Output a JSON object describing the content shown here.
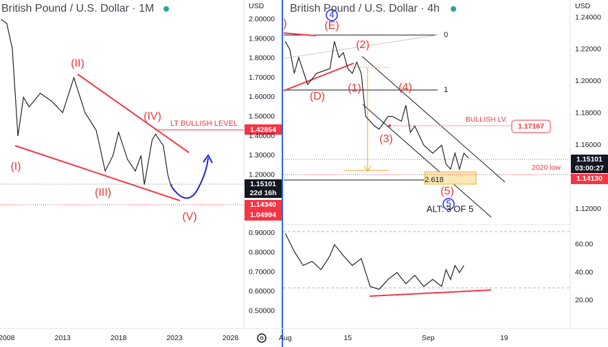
{
  "chart_data": [
    {
      "type": "line",
      "title": "British Pound / U.S. Dollar · 1M",
      "axis_unit": "USD",
      "color": "#222222",
      "x": [
        2007.5,
        2008,
        2008.5,
        2009,
        2009.5,
        2010,
        2011,
        2012,
        2013,
        2014,
        2015,
        2016,
        2016.8,
        2017.5,
        2018,
        2018.8,
        2019.5,
        2020,
        2020.3,
        2021,
        2021.3,
        2022,
        2022.4,
        2022.7,
        2022.8
      ],
      "values": [
        2.0,
        1.98,
        1.85,
        1.4,
        1.6,
        1.55,
        1.62,
        1.58,
        1.52,
        1.7,
        1.52,
        1.43,
        1.22,
        1.3,
        1.42,
        1.28,
        1.22,
        1.3,
        1.15,
        1.38,
        1.41,
        1.35,
        1.2,
        1.14,
        1.151
      ],
      "xlim": [
        2007.4,
        2029.2
      ],
      "xticks": [
        2008,
        2013,
        2018,
        2023,
        2028
      ],
      "ylim": [
        0.41,
        2.1
      ],
      "yticks": [
        {
          "value": 2.0,
          "label": "2.00000"
        },
        {
          "value": 1.9,
          "label": "1.90000"
        },
        {
          "value": 1.8,
          "label": "1.80000"
        },
        {
          "value": 1.7,
          "label": "1.70000"
        },
        {
          "value": 1.6,
          "label": "1.60000"
        },
        {
          "value": 1.5,
          "label": "1.50000"
        },
        {
          "value": 1.4,
          "label": "1.40000"
        },
        {
          "value": 1.3,
          "label": "1.30000"
        },
        {
          "value": 1.2,
          "label": "1.20000"
        },
        {
          "value": 0.9,
          "label": "0.90000"
        },
        {
          "value": 0.8,
          "label": "0.80000"
        },
        {
          "value": 0.7,
          "label": "0.70000"
        },
        {
          "value": 0.6,
          "label": "0.60000"
        },
        {
          "value": 0.5,
          "label": "0.50000"
        }
      ],
      "annotations": [
        "(I)",
        "(II)",
        "(III)",
        "(IV)",
        "(V)",
        "LT BULLISH LEVEL"
      ],
      "price_labels": [
        "1.42854",
        "1.15101",
        "22d 16h",
        "1.14340",
        "1.04994"
      ]
    },
    {
      "type": "line",
      "title": "British Pound / U.S. Dollar · 4h",
      "axis_unit": "USD",
      "color": "#222222",
      "x": [
        0,
        1,
        2,
        3,
        5,
        7,
        10,
        11,
        12,
        13,
        14,
        15,
        16,
        17,
        18,
        20,
        21,
        23,
        24,
        26,
        27,
        28,
        29,
        31,
        33,
        35,
        36,
        37,
        38,
        39,
        40,
        41
      ],
      "values": [
        1.225,
        1.22,
        1.205,
        1.215,
        1.198,
        1.205,
        1.208,
        1.225,
        1.215,
        1.218,
        1.208,
        1.205,
        1.212,
        1.205,
        1.178,
        1.172,
        1.17,
        1.178,
        1.178,
        1.175,
        1.185,
        1.168,
        1.172,
        1.16,
        1.155,
        1.16,
        1.148,
        1.145,
        1.155,
        1.145,
        1.155,
        1.152
      ],
      "xlim": [
        -0.5,
        63.8
      ],
      "xticks": [
        {
          "value": 0,
          "label": "Aug"
        },
        {
          "value": 14,
          "label": "15"
        },
        {
          "value": 32,
          "label": "Sep"
        },
        {
          "value": 49,
          "label": "19"
        }
      ],
      "ylim": [
        1.111,
        1.251
      ],
      "yticks": [
        {
          "value": 1.24,
          "label": "1.24000"
        },
        {
          "value": 1.22,
          "label": "1.22000"
        },
        {
          "value": 1.2,
          "label": "1.20000"
        },
        {
          "value": 1.18,
          "label": "1.18000"
        },
        {
          "value": 1.16,
          "label": "1.16000"
        },
        {
          "value": 1.12,
          "label": "1.12000"
        }
      ],
      "annotations": [
        ")",
        "(E)",
        "(2)",
        "(1)",
        "(D)",
        "(4)",
        "(3)",
        "(5)",
        "4",
        "5",
        "ALT: 3 OF 5",
        "0",
        "1",
        "2.618",
        "BULLISH LV.",
        "2020 low"
      ],
      "price_labels": [
        "1.17167",
        "1.15101",
        "03:00:27",
        "1.14130"
      ]
    },
    {
      "type": "line",
      "color": "#222222",
      "x": [
        0,
        2,
        4,
        6,
        8,
        10,
        11,
        13,
        15,
        17,
        19,
        21,
        23,
        25,
        27,
        29,
        31,
        33,
        35,
        36,
        37,
        38,
        39,
        40
      ],
      "values": [
        68,
        55,
        45,
        48,
        42,
        52,
        60,
        52,
        45,
        50,
        30,
        28,
        35,
        40,
        32,
        38,
        30,
        35,
        30,
        42,
        35,
        45,
        40,
        45
      ],
      "xlim": [
        -0.5,
        63.8
      ],
      "ylim": [
        0,
        72.7
      ],
      "yticks": [
        {
          "value": 60,
          "label": "60.00"
        },
        {
          "value": 40,
          "label": "40.00"
        },
        {
          "value": 20,
          "label": "20.00"
        }
      ]
    }
  ]
}
